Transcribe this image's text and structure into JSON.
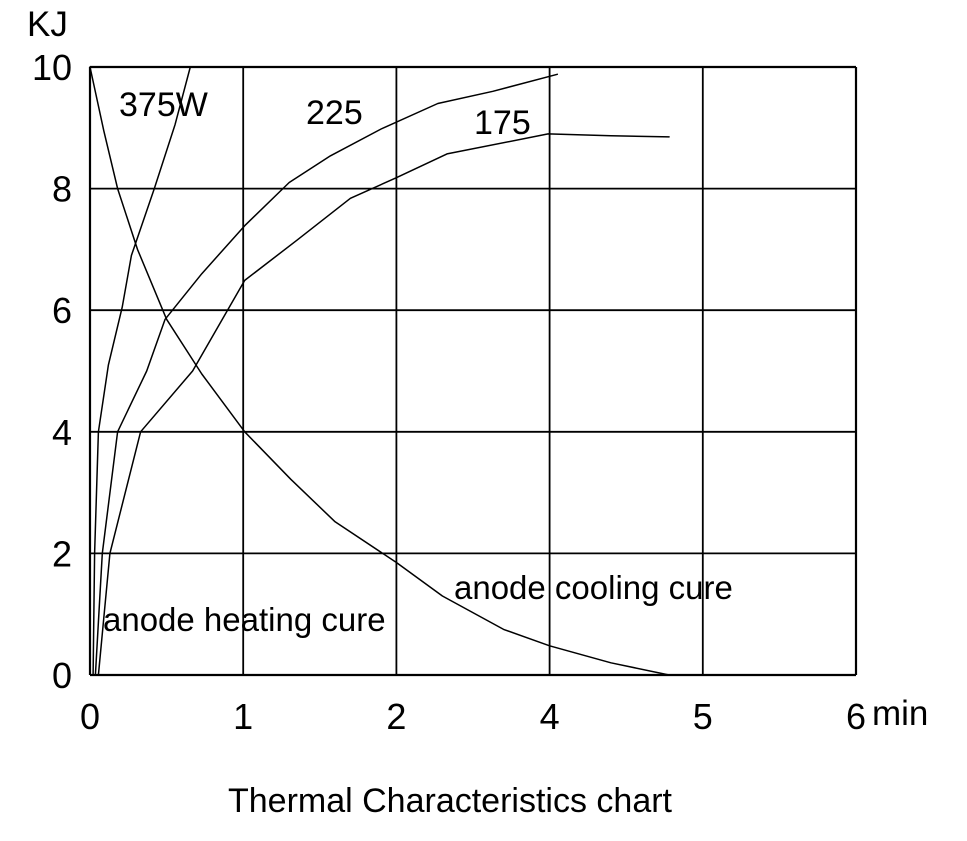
{
  "page": {
    "background_color": "#ffffff",
    "ink_color": "#000000"
  },
  "title": "Thermal Characteristics chart",
  "axis": {
    "y_unit": "KJ",
    "x_unit": "min"
  },
  "annotations": {
    "heating": "anode heating cure",
    "cooling": "anode cooling cure"
  },
  "curve_labels": {
    "w375": "375W",
    "w225": "225",
    "w175": "175"
  },
  "chart_data": {
    "type": "line",
    "title": "Thermal Characteristics chart",
    "ylabel": "KJ",
    "xlabel": "min",
    "ylim": [
      0,
      10
    ],
    "y_ticks": [
      0,
      2,
      4,
      6,
      8,
      10
    ],
    "y_tick_labels": [
      "0",
      "2",
      "4",
      "6",
      "8",
      "10"
    ],
    "x_tick_positions": [
      0,
      1,
      2,
      3,
      4,
      5
    ],
    "x_tick_labels": [
      "0",
      "1",
      "2",
      "4",
      "5",
      "6"
    ],
    "x_axis_note": "six equally spaced vertical gridlines labeled 0,1,2,4,5,6 min (label 3 skipped)",
    "grid": true,
    "legend_position": "inline-labels",
    "line_color": "#000000",
    "series": [
      {
        "id": "heating-375w",
        "name": "375W",
        "points": [
          [
            0.02,
            0
          ],
          [
            0.03,
            2.0
          ],
          [
            0.055,
            4.0
          ],
          [
            0.12,
            5.1
          ],
          [
            0.21,
            6.05
          ],
          [
            0.27,
            6.9
          ],
          [
            0.42,
            8.0
          ],
          [
            0.555,
            9.05
          ],
          [
            0.655,
            10.0
          ]
        ]
      },
      {
        "id": "heating-225",
        "name": "225",
        "points": [
          [
            0.035,
            0
          ],
          [
            0.08,
            2.0
          ],
          [
            0.18,
            4.0
          ],
          [
            0.37,
            5.0
          ],
          [
            0.49,
            5.85
          ],
          [
            0.73,
            6.6
          ],
          [
            1.01,
            7.39
          ],
          [
            1.3,
            8.1
          ],
          [
            1.57,
            8.54
          ],
          [
            1.9,
            8.98
          ],
          [
            2.27,
            9.4
          ],
          [
            2.63,
            9.6
          ],
          [
            3.05,
            9.88
          ]
        ]
      },
      {
        "id": "heating-175",
        "name": "175",
        "points": [
          [
            0.055,
            0
          ],
          [
            0.13,
            2.0
          ],
          [
            0.33,
            4.0
          ],
          [
            0.67,
            5.0
          ],
          [
            1.01,
            6.49
          ],
          [
            1.35,
            7.15
          ],
          [
            1.7,
            7.84
          ],
          [
            2.0,
            8.18
          ],
          [
            2.33,
            8.57
          ],
          [
            2.99,
            8.9
          ],
          [
            3.4,
            8.87
          ],
          [
            3.78,
            8.85
          ]
        ]
      },
      {
        "id": "anode-cooling",
        "name": "anode cooling cure",
        "points": [
          [
            0,
            10.0
          ],
          [
            0.09,
            8.95
          ],
          [
            0.18,
            8.0
          ],
          [
            0.31,
            7.0
          ],
          [
            0.5,
            5.85
          ],
          [
            0.73,
            4.95
          ],
          [
            1.01,
            4.0
          ],
          [
            1.31,
            3.22
          ],
          [
            1.6,
            2.52
          ],
          [
            2.0,
            1.85
          ],
          [
            2.3,
            1.3
          ],
          [
            2.7,
            0.75
          ],
          [
            3.0,
            0.48
          ],
          [
            3.4,
            0.2
          ],
          [
            3.78,
            0.0
          ]
        ]
      }
    ]
  }
}
